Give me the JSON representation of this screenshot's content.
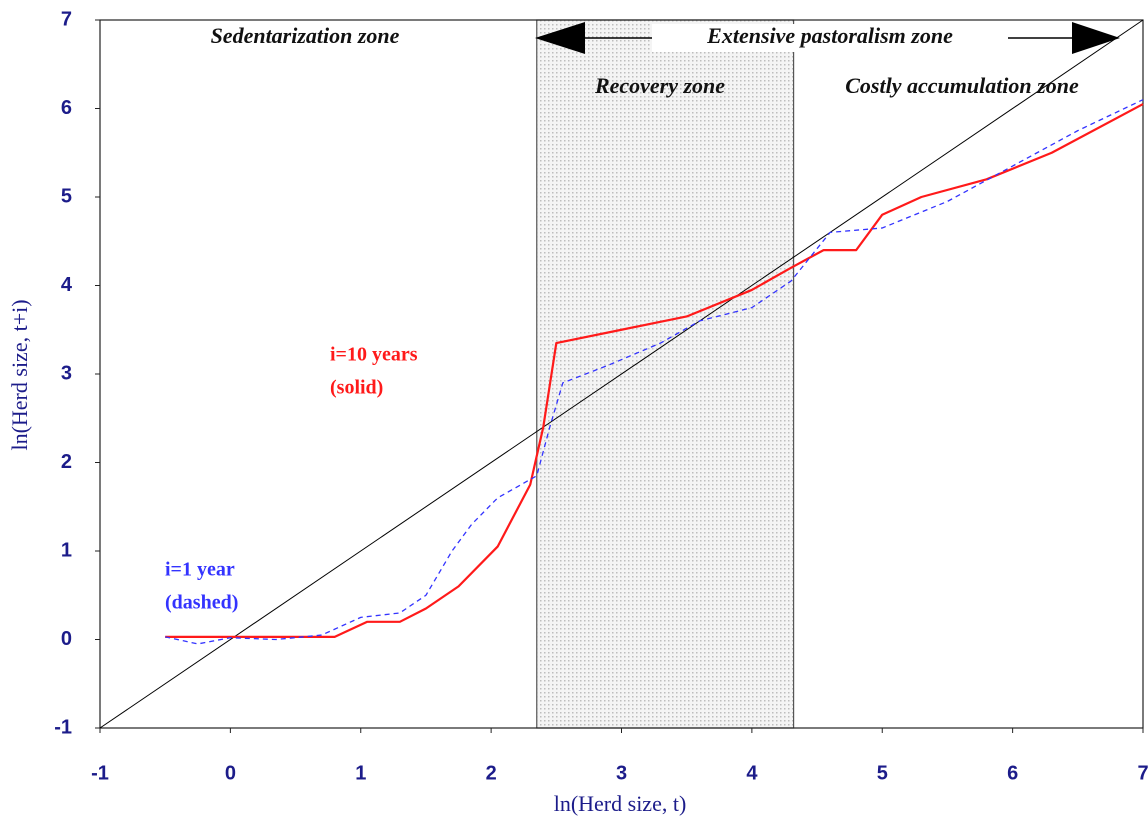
{
  "chart_data": {
    "type": "line",
    "xlabel": "ln(Herd size, t)",
    "ylabel": "ln(Herd size, t+i)",
    "xlim": [
      -1,
      7
    ],
    "ylim": [
      -1,
      7
    ],
    "xticks": [
      -1,
      0,
      1,
      2,
      3,
      4,
      5,
      6,
      7
    ],
    "yticks": [
      -1,
      0,
      1,
      2,
      3,
      4,
      5,
      6,
      7
    ],
    "shaded_region": [
      2.35,
      4.32
    ],
    "series": [
      {
        "color": "#000000",
        "dash": false,
        "x": [
          -1,
          7
        ],
        "values": [
          -1,
          7
        ]
      },
      {
        "color": "#ff1a1a",
        "dash": false,
        "x": [
          -0.5,
          0.8,
          1.05,
          1.3,
          1.5,
          1.75,
          2.05,
          2.3,
          2.4,
          2.5,
          3.0,
          3.5,
          4.0,
          4.3,
          4.55,
          4.8,
          5.0,
          5.3,
          5.8,
          6.3,
          7.0
        ],
        "values": [
          0.03,
          0.03,
          0.2,
          0.2,
          0.35,
          0.6,
          1.05,
          1.75,
          2.4,
          3.35,
          3.5,
          3.65,
          3.95,
          4.2,
          4.4,
          4.4,
          4.8,
          5.0,
          5.2,
          5.5,
          6.05
        ]
      },
      {
        "color": "#3333ff",
        "dash": true,
        "x": [
          -0.5,
          -0.25,
          0,
          0.35,
          0.7,
          1.0,
          1.3,
          1.5,
          1.7,
          1.85,
          2.05,
          2.35,
          2.45,
          2.55,
          2.9,
          3.3,
          3.6,
          4.0,
          4.3,
          4.6,
          5.0,
          5.5,
          6.0,
          6.5,
          7.0
        ],
        "values": [
          0.03,
          -0.05,
          0.02,
          0.0,
          0.05,
          0.25,
          0.3,
          0.5,
          1.0,
          1.3,
          1.6,
          1.85,
          2.4,
          2.9,
          3.1,
          3.35,
          3.6,
          3.75,
          4.05,
          4.6,
          4.65,
          4.95,
          5.35,
          5.75,
          6.1
        ]
      }
    ],
    "annotations": [
      {
        "text": "Sedentarization zone",
        "color": "#111111"
      },
      {
        "text": "Extensive pastoralism zone",
        "color": "#111111"
      },
      {
        "text": "Recovery zone",
        "color": "#111111"
      },
      {
        "text": "Costly accumulation zone",
        "color": "#111111"
      },
      {
        "text": "i=10 years",
        "color": "#ff1a1a"
      },
      {
        "text": "(solid)",
        "color": "#ff1a1a"
      },
      {
        "text": "i=1 year",
        "color": "#3333ff"
      },
      {
        "text": "(dashed)",
        "color": "#3333ff"
      }
    ]
  }
}
